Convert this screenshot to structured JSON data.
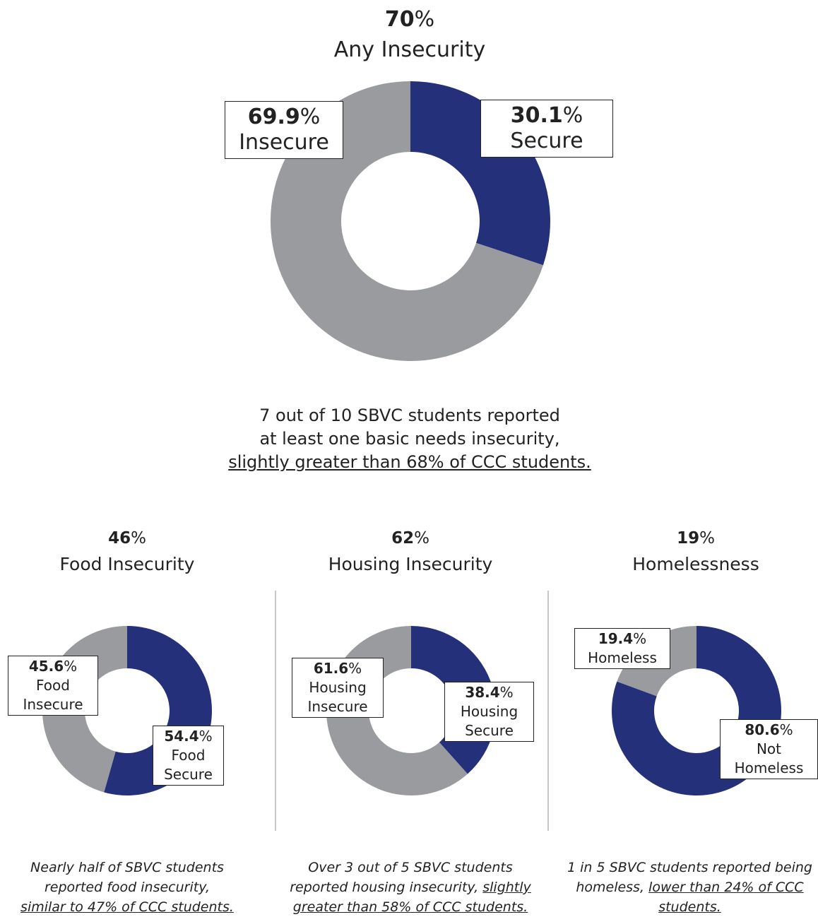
{
  "colors": {
    "secure": "#24317a",
    "insecure": "#9a9b9e"
  },
  "main": {
    "headline_value": "70",
    "headline_unit": "%",
    "title": "Any Insecurity",
    "caption_line1": "7 out of 10 SBVC students reported",
    "caption_line2": "at least one basic needs insecurity,",
    "caption_line3": "slightly greater than 68% of CCC students."
  },
  "panels": [
    {
      "headline_value": "46",
      "headline_unit": "%",
      "title": "Food Insecurity",
      "note_line1": "Nearly half of SBVC students",
      "note_line2": "reported food insecurity,",
      "note_line3": "similar to 47% of CCC students."
    },
    {
      "headline_value": "62",
      "headline_unit": "%",
      "title": "Housing Insecurity",
      "note_line1": "Over 3 out of 5 SBVC students",
      "note_line2a": "reported housing insecurity, ",
      "note_line2b": "slightly",
      "note_line3": "greater than 58% of CCC students."
    },
    {
      "headline_value": "19",
      "headline_unit": "%",
      "title": "Homelessness",
      "note_line1": "1 in 5 SBVC students reported being",
      "note_line2a": "homeless, ",
      "note_line2b": "lower than 24% of CCC",
      "note_line3": "students."
    }
  ],
  "chart_data": [
    {
      "type": "pie",
      "title": "Any Insecurity",
      "donut": true,
      "slices": [
        {
          "label_value": "30.1",
          "label_unit": "%",
          "label_text": "Secure",
          "value": 30.1,
          "color": "#24317a"
        },
        {
          "label_value": "69.9",
          "label_unit": "%",
          "label_text": "Insecure",
          "value": 69.9,
          "color": "#9a9b9e"
        }
      ]
    },
    {
      "type": "pie",
      "title": "Food Insecurity",
      "donut": true,
      "slices": [
        {
          "label_value": "54.4",
          "label_unit": "%",
          "label_line1": "Food",
          "label_line2": "Secure",
          "value": 54.4,
          "color": "#24317a"
        },
        {
          "label_value": "45.6",
          "label_unit": "%",
          "label_line1": "Food",
          "label_line2": "Insecure",
          "value": 45.6,
          "color": "#9a9b9e"
        }
      ]
    },
    {
      "type": "pie",
      "title": "Housing Insecurity",
      "donut": true,
      "slices": [
        {
          "label_value": "38.4",
          "label_unit": "%",
          "label_line1": "Housing",
          "label_line2": "Secure",
          "value": 38.4,
          "color": "#24317a"
        },
        {
          "label_value": "61.6",
          "label_unit": "%",
          "label_line1": "Housing",
          "label_line2": "Insecure",
          "value": 61.6,
          "color": "#9a9b9e"
        }
      ]
    },
    {
      "type": "pie",
      "title": "Homelessness",
      "donut": true,
      "slices": [
        {
          "label_value": "80.6",
          "label_unit": "%",
          "label_line1": "Not",
          "label_line2": "Homeless",
          "value": 80.6,
          "color": "#24317a"
        },
        {
          "label_value": "19.4",
          "label_unit": "%",
          "label_line1": "Homeless",
          "value": 19.4,
          "color": "#9a9b9e"
        }
      ]
    }
  ]
}
